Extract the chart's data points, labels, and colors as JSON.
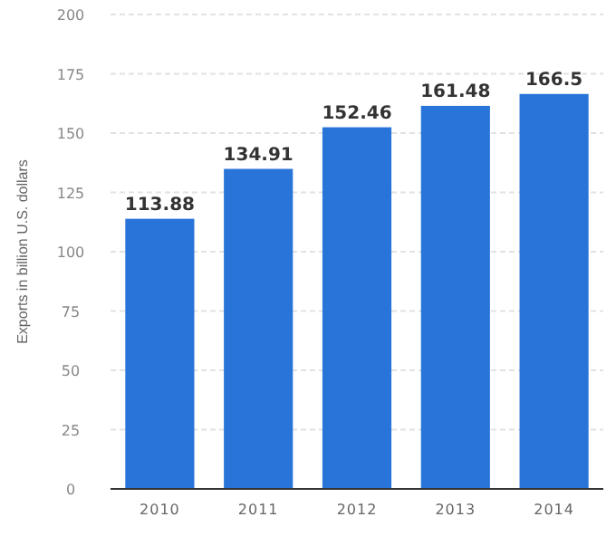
{
  "chart_data": {
    "type": "bar",
    "ylabel": "Exports in billion U.S. dollars",
    "categories": [
      "2010",
      "2011",
      "2012",
      "2013",
      "2014"
    ],
    "values": [
      113.88,
      134.91,
      152.46,
      161.48,
      166.5
    ],
    "color": "#2874d9",
    "ylim": [
      0,
      200
    ],
    "yticks": [
      0,
      25,
      50,
      75,
      100,
      125,
      150,
      175,
      200
    ],
    "grid": "y",
    "data_labels": true
  }
}
